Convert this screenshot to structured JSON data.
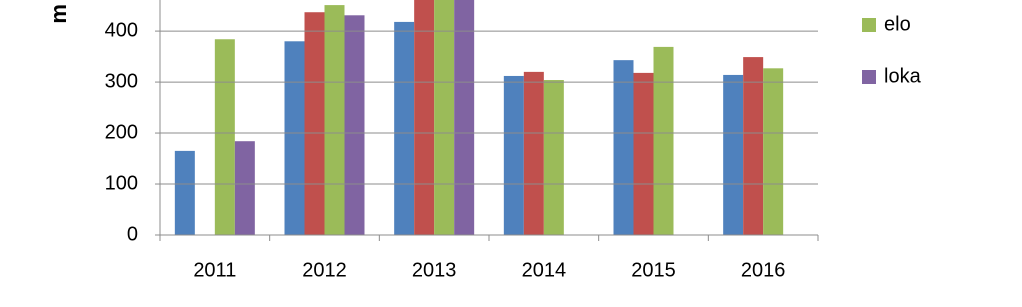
{
  "chart_data": {
    "type": "bar",
    "y_label": "m",
    "categories": [
      "2011",
      "2012",
      "2013",
      "2014",
      "2015",
      "2016"
    ],
    "series": [
      {
        "color": "#4f81bd",
        "values": [
          165,
          380,
          418,
          312,
          343,
          314
        ]
      },
      {
        "color": "#c0504d",
        "values": [
          null,
          437,
          475,
          320,
          318,
          349
        ]
      },
      {
        "name": "elo",
        "color": "#9bbb59",
        "values": [
          384,
          451,
          475,
          304,
          369,
          327
        ]
      },
      {
        "name": "loka",
        "color": "#8064a2",
        "values": [
          184,
          431,
          475,
          null,
          null,
          null
        ]
      }
    ],
    "ylim": [
      0,
      461
    ],
    "yticks": [
      0,
      100,
      200,
      300,
      400
    ],
    "grid": true
  }
}
